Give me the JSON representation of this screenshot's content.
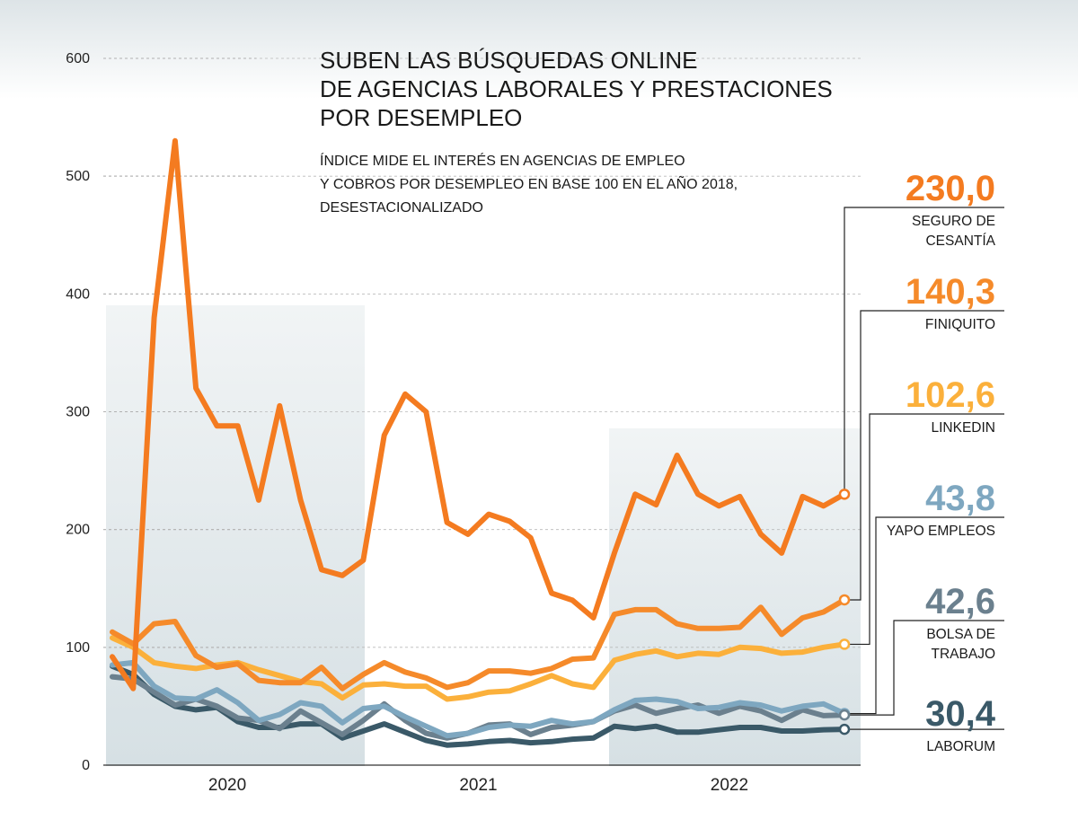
{
  "chart_data": {
    "type": "line",
    "title_lines": [
      "SUBEN LAS BÚSQUEDAS ONLINE",
      "DE AGENCIAS LABORALES Y PRESTACIONES",
      "POR DESEMPLEO"
    ],
    "subtitle_lines": [
      "ÍNDICE MIDE EL INTERÉS EN AGENCIAS DE EMPLEO",
      "Y COBROS POR DESEMPLEO EN BASE 100 EN EL AÑO 2018,",
      "DESESTACIONALIZADO"
    ],
    "x_labels": [
      "2020",
      "2021",
      "2022"
    ],
    "y_ticks": [
      0,
      100,
      200,
      300,
      400,
      500,
      600
    ],
    "ylim": [
      0,
      600
    ],
    "grid": true,
    "series": [
      {
        "name_lines": [
          "SEGURO DE",
          "CESANTÍA"
        ],
        "end_label": "230,0",
        "color": "#f47b20",
        "values": [
          92,
          65,
          380,
          530,
          320,
          288,
          288,
          225,
          305,
          225,
          166,
          161,
          174,
          280,
          315,
          300,
          206,
          196,
          213,
          207,
          193,
          146,
          140,
          125,
          180,
          230,
          221,
          263,
          230,
          220,
          228,
          196,
          180,
          228,
          220,
          230
        ]
      },
      {
        "name_lines": [
          "FINIQUITO"
        ],
        "end_label": "140,3",
        "color": "#f58a2a",
        "values": [
          113,
          103,
          120,
          122,
          93,
          83,
          86,
          72,
          70,
          70,
          83,
          65,
          77,
          87,
          79,
          74,
          66,
          70,
          80,
          80,
          78,
          82,
          90,
          91,
          128,
          132,
          132,
          120,
          116,
          116,
          117,
          134,
          111,
          125,
          130,
          140.3
        ]
      },
      {
        "name_lines": [
          "LINKEDIN"
        ],
        "end_label": "102,6",
        "color": "#fbb03b",
        "values": [
          108,
          100,
          87,
          84,
          82,
          85,
          87,
          81,
          76,
          71,
          69,
          57,
          68,
          69,
          67,
          67,
          56,
          58,
          62,
          63,
          69,
          76,
          69,
          66,
          89,
          94,
          97,
          92,
          95,
          94,
          100,
          99,
          95,
          96,
          100,
          102.6
        ]
      },
      {
        "name_lines": [
          "YAPO EMPLEOS"
        ],
        "end_label": "43,8",
        "color": "#7ea7c0",
        "values": [
          85,
          87,
          67,
          57,
          56,
          64,
          53,
          38,
          43,
          53,
          50,
          36,
          48,
          50,
          41,
          33,
          25,
          27,
          32,
          34,
          33,
          38,
          35,
          37,
          47,
          55,
          56,
          54,
          48,
          49,
          53,
          51,
          46,
          50,
          52,
          43.8
        ]
      },
      {
        "name_lines": [
          "BOLSA DE",
          "TRABAJO"
        ],
        "end_label": "42,6",
        "color": "#6b808e",
        "values": [
          75,
          73,
          62,
          51,
          56,
          50,
          40,
          38,
          31,
          46,
          36,
          26,
          38,
          52,
          38,
          27,
          23,
          27,
          34,
          35,
          26,
          32,
          34,
          37,
          46,
          51,
          44,
          48,
          51,
          44,
          50,
          46,
          38,
          47,
          42,
          42.6
        ]
      },
      {
        "name_lines": [
          "LABORUM"
        ],
        "end_label": "30,4",
        "color": "#3a5968",
        "values": [
          84,
          77,
          60,
          50,
          47,
          49,
          37,
          32,
          32,
          35,
          35,
          23,
          29,
          35,
          28,
          21,
          17,
          18,
          20,
          21,
          19,
          20,
          22,
          23,
          33,
          31,
          33,
          28,
          28,
          30,
          32,
          32,
          29,
          29,
          30,
          30.4
        ]
      }
    ]
  }
}
